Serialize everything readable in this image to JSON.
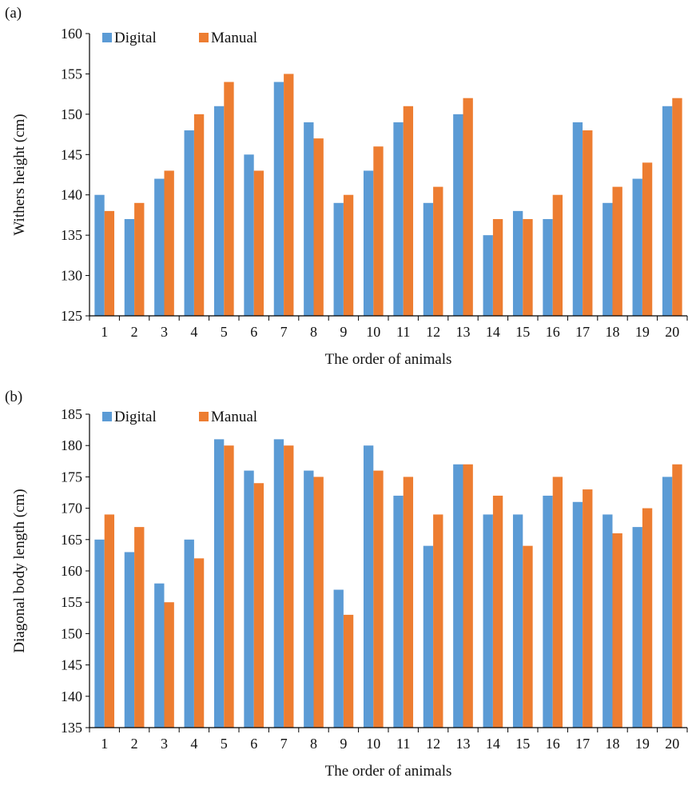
{
  "colors": {
    "digital": "#5B9BD5",
    "manual": "#ED7D31",
    "axis": "#000000"
  },
  "chart_data": [
    {
      "type": "bar",
      "panel_label": "(a)",
      "xlabel": "The order of animals",
      "ylabel": "Withers height (cm)",
      "ylim": [
        125,
        160
      ],
      "ytick_step": 5,
      "legend_position": "top-left",
      "categories": [
        "1",
        "2",
        "3",
        "4",
        "5",
        "6",
        "7",
        "8",
        "9",
        "10",
        "11",
        "12",
        "13",
        "14",
        "15",
        "16",
        "17",
        "18",
        "19",
        "20"
      ],
      "series": [
        {
          "name": "Digital",
          "values": [
            140,
            137,
            142,
            148,
            151,
            145,
            154,
            149,
            139,
            143,
            149,
            139,
            150,
            135,
            138,
            137,
            149,
            139,
            142,
            151
          ]
        },
        {
          "name": "Manual",
          "values": [
            138,
            139,
            143,
            150,
            154,
            143,
            155,
            147,
            140,
            146,
            151,
            141,
            152,
            137,
            137,
            140,
            148,
            141,
            144,
            152
          ]
        }
      ]
    },
    {
      "type": "bar",
      "panel_label": "(b)",
      "xlabel": "The order of animals",
      "ylabel": "Diagonal body length (cm)",
      "ylim": [
        135,
        185
      ],
      "ytick_step": 5,
      "legend_position": "top-left",
      "categories": [
        "1",
        "2",
        "3",
        "4",
        "5",
        "6",
        "7",
        "8",
        "9",
        "10",
        "11",
        "12",
        "13",
        "14",
        "15",
        "16",
        "17",
        "18",
        "19",
        "20"
      ],
      "series": [
        {
          "name": "Digital",
          "values": [
            165,
            163,
            158,
            165,
            181,
            176,
            181,
            176,
            157,
            180,
            172,
            164,
            177,
            169,
            169,
            172,
            171,
            169,
            167,
            175
          ]
        },
        {
          "name": "Manual",
          "values": [
            169,
            167,
            155,
            162,
            180,
            174,
            180,
            175,
            153,
            176,
            175,
            169,
            177,
            172,
            164,
            175,
            173,
            166,
            170,
            177
          ]
        }
      ]
    }
  ]
}
